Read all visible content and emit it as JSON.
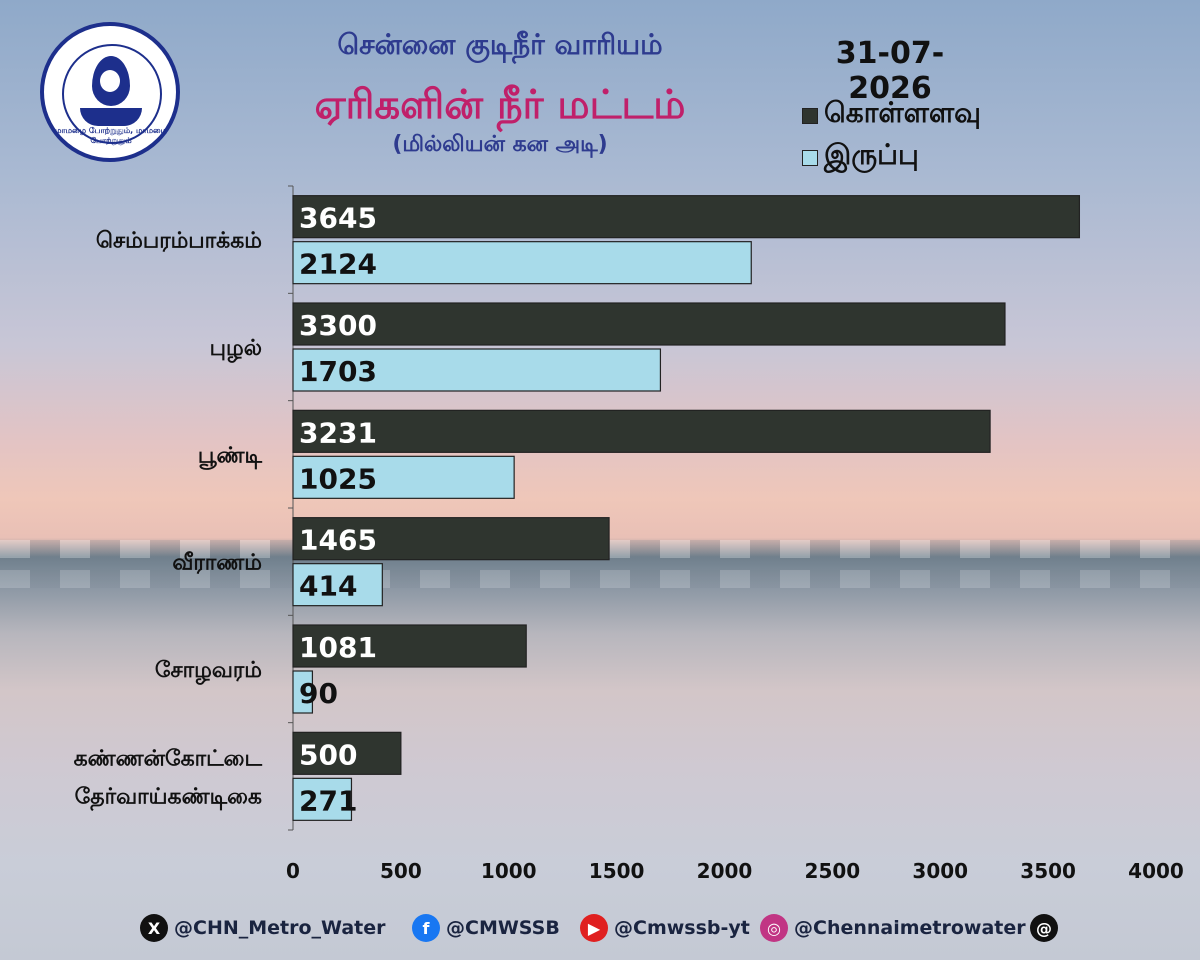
{
  "header": {
    "org_title": "சென்னை குடிநீர் வாரியம்",
    "title": "ஏரிகளின் நீர் மட்டம்",
    "unit": "(மில்லியன் கன அடி)",
    "date": "31-07-2026"
  },
  "logo": {
    "ring_text": "மாமழை போற்றுதும், மாமழை போற்றுதும்"
  },
  "legend": {
    "placement": "top-right",
    "items": [
      {
        "label": "கொள்ளளவு",
        "color": "#2f352f"
      },
      {
        "label": "இருப்பு",
        "color": "#a8dbea"
      }
    ]
  },
  "chart_data": {
    "type": "bar",
    "orientation": "horizontal",
    "categories": [
      "செம்பரம்பாக்கம்",
      "புழல்",
      "பூண்டி",
      "வீராணம்",
      "சோழவரம்",
      "கண்ணன்கோட்டை\nதேர்வாய்கண்டிகை"
    ],
    "series": [
      {
        "name": "கொள்ளளவு",
        "values": [
          3645,
          3300,
          3231,
          1465,
          1081,
          500
        ],
        "color": "#2f352f"
      },
      {
        "name": "இருப்பு",
        "values": [
          2124,
          1703,
          1025,
          414,
          90,
          271
        ],
        "color": "#a8dbea"
      }
    ],
    "xlim": [
      0,
      4000
    ],
    "xticks": [
      0,
      500,
      1000,
      1500,
      2000,
      2500,
      3000,
      3500,
      4000
    ],
    "grid": false
  },
  "footer": {
    "socials": [
      {
        "icon": "x-icon",
        "handle": "@CHN_Metro_Water",
        "color": "#111111",
        "glyph": "X"
      },
      {
        "icon": "facebook-icon",
        "handle": "@CMWSSB",
        "color": "#1877f2",
        "glyph": "f"
      },
      {
        "icon": "youtube-icon",
        "handle": "@Cmwssb-yt",
        "color": "#e02020",
        "glyph": "▶"
      },
      {
        "icon": "instagram-icon",
        "handle": "@Chennaimetrowater",
        "color": "#c13584",
        "glyph": "◎"
      },
      {
        "icon": "threads-icon",
        "handle": "",
        "color": "#111111",
        "glyph": "@"
      }
    ]
  }
}
